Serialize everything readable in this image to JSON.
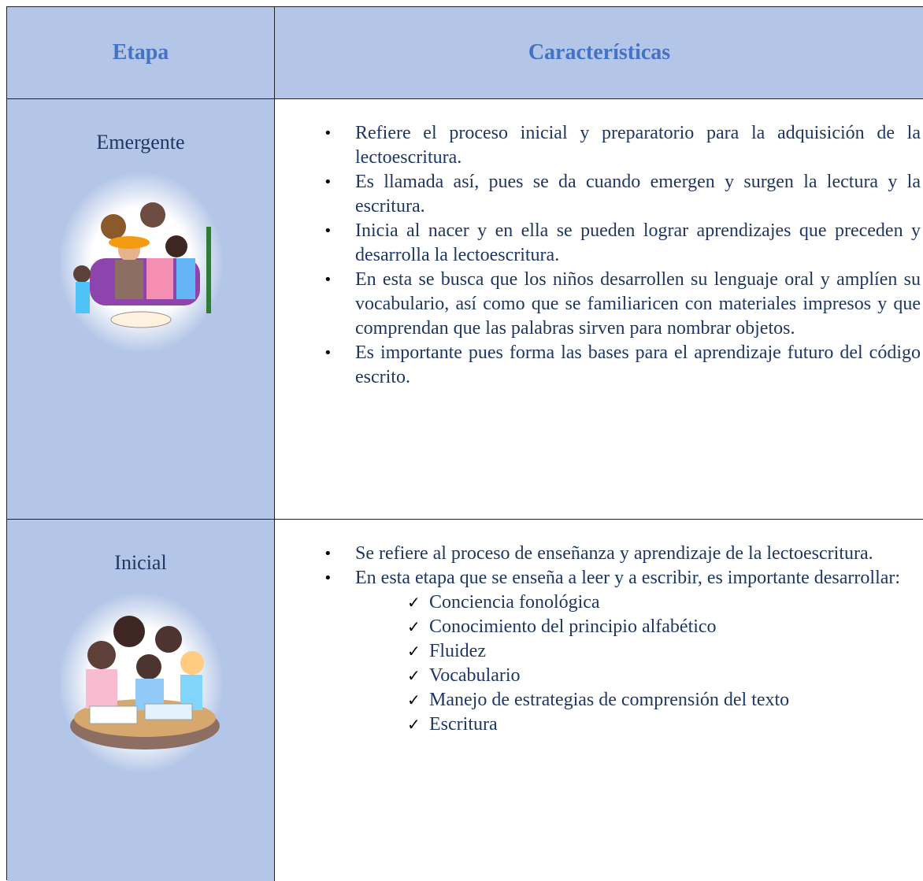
{
  "table": {
    "headers": [
      "Etapa",
      "Características"
    ],
    "rows": [
      {
        "stage": "Emergente",
        "bullets": [
          "Refiere el proceso inicial y preparatorio para la adquisición de la lectoescritura.",
          "Es llamada así, pues se da cuando emergen y surgen la lectura y la escritura.",
          "Inicia al nacer y en ella se pueden lograr aprendizajes que preceden y desarrolla la lectoescritura.",
          "En esta se busca que los niños desarrollen su lenguaje oral y amplíen su vocabulario, así como que se familiaricen con materiales impresos y que comprendan que las palabras sirven para nombrar objetos.",
          "Es importante pues forma las bases para el aprendizaje futuro del código escrito."
        ]
      },
      {
        "stage": "Inicial",
        "bullets": [
          "Se refiere al proceso de enseñanza y aprendizaje de la lectoescritura.",
          "En esta etapa que se enseña a leer y a escribir, es importante desarrollar:"
        ],
        "checks": [
          "Conciencia fonológica",
          "Conocimiento del principio alfabético",
          "Fluidez",
          "Vocabulario",
          "Manejo de estrategias de comprensión del texto",
          "Escritura"
        ]
      }
    ]
  }
}
